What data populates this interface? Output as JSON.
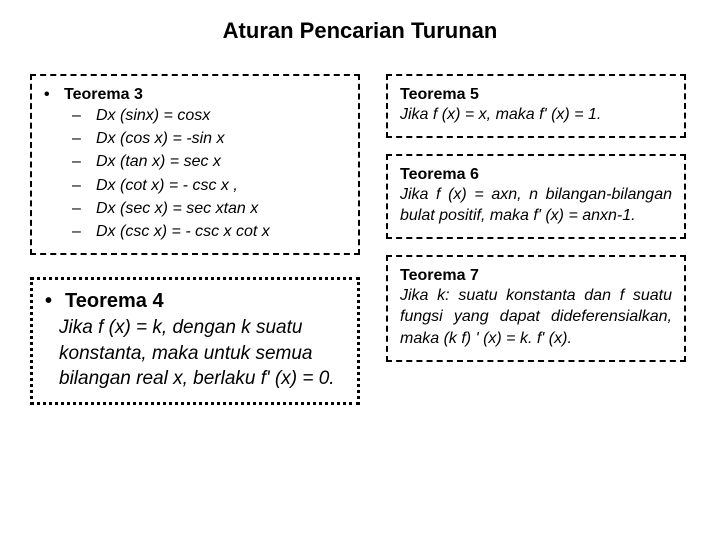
{
  "title": "Aturan Pencarian Turunan",
  "teorema3": {
    "heading": "Teorema 3",
    "items": [
      "Dx (sinx) = cosx",
      "Dx (cos x) = -sin x",
      "Dx (tan x) = sec x",
      "Dx (cot x) = - csc x ,",
      "Dx (sec x) = sec xtan x",
      "Dx (csc x) = - csc x cot x"
    ]
  },
  "teorema4": {
    "heading": "Teorema 4",
    "body": "Jika f (x) = k, dengan k suatu konstanta, maka untuk semua bilangan real x, berlaku f' (x) = 0."
  },
  "teorema5": {
    "heading": "Teorema 5",
    "body": "Jika f (x) = x, maka f' (x) = 1."
  },
  "teorema6": {
    "heading": "Teorema 6",
    "body": "Jika f (x) = axn, n bilangan-bilangan bulat positif, maka f' (x) = anxn-1."
  },
  "teorema7": {
    "heading": "Teorema 7",
    "body": "Jika k: suatu konstanta dan f suatu fungsi yang dapat dideferensialkan, maka (k f) ' (x) = k. f' (x)."
  },
  "style": {
    "text_color": "#000000",
    "background_color": "#ffffff",
    "border_color": "#000000",
    "title_fontsize": 22,
    "body_fontsize": 16,
    "t4_heading_fontsize": 20,
    "t4_body_fontsize": 19,
    "font_family": "Arial"
  }
}
